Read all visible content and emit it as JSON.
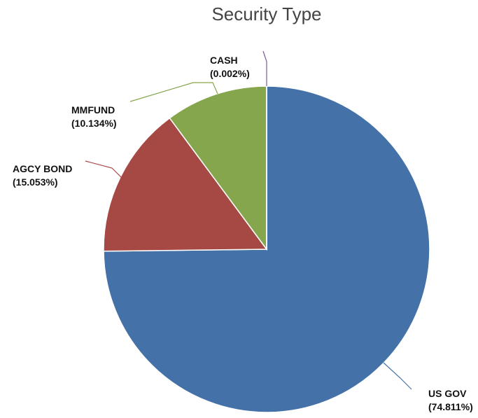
{
  "chart_data": {
    "type": "pie",
    "title": "Security Type",
    "start_angle_deg": 0,
    "direction": "clockwise",
    "slices": [
      {
        "label": "US GOV",
        "value": 74.811,
        "value_text": "(74.811%)",
        "color": "#4472a8"
      },
      {
        "label": "AGCY BOND",
        "value": 15.053,
        "value_text": "(15.053%)",
        "color": "#a64843"
      },
      {
        "label": "MMFUND",
        "value": 10.134,
        "value_text": "(10.134%)",
        "color": "#86a64e"
      },
      {
        "label": "CASH",
        "value": 0.002,
        "value_text": "(0.002%)",
        "color": "#7b5a95"
      }
    ]
  }
}
